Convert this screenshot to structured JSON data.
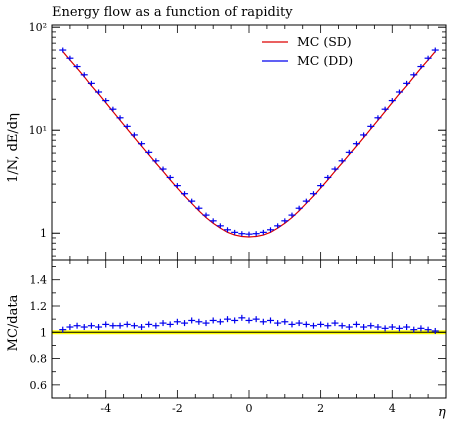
{
  "chart_data": {
    "type": "line",
    "title": "Energy flow as a function of rapidity",
    "xlabel": "η",
    "ylabel": "1/N, dE/dη",
    "ratio_ylabel": "MC/data",
    "xlim": [
      -5.5,
      5.5
    ],
    "ylim": [
      0.55,
      105
    ],
    "yscale": "log",
    "ratio_ylim": [
      0.5,
      1.55
    ],
    "x_ticks": [
      -4,
      -2,
      0,
      2,
      4
    ],
    "x_tick_labels": [
      "-4",
      "-2",
      "0",
      "2",
      "4"
    ],
    "y_ticks": [
      1,
      10,
      100
    ],
    "y_tick_labels": [
      "1",
      "10¹",
      "10²"
    ],
    "ratio_ticks": [
      0.6,
      0.8,
      1,
      1.2,
      1.4
    ],
    "ratio_tick_labels": [
      "0.6",
      "0.8",
      "1",
      "1.2",
      "1.4"
    ],
    "legend_position": "top-right",
    "colors": {
      "sd": "#dd0000",
      "dd": "#0000ee",
      "band": "#ffff00",
      "band_edge": "#c8c800"
    },
    "x": [
      -5.2,
      -5.0,
      -4.8,
      -4.6,
      -4.4,
      -4.2,
      -4.0,
      -3.8,
      -3.6,
      -3.4,
      -3.2,
      -3.0,
      -2.8,
      -2.6,
      -2.4,
      -2.2,
      -2.0,
      -1.8,
      -1.6,
      -1.4,
      -1.2,
      -1.0,
      -0.8,
      -0.6,
      -0.4,
      -0.2,
      0.0,
      0.2,
      0.4,
      0.6,
      0.8,
      1.0,
      1.2,
      1.4,
      1.6,
      1.8,
      2.0,
      2.2,
      2.4,
      2.6,
      2.8,
      3.0,
      3.2,
      3.4,
      3.6,
      3.8,
      4.0,
      4.2,
      4.4,
      4.6,
      4.8,
      5.0,
      5.2
    ],
    "series": [
      {
        "name": "MC (SD)",
        "style": "line",
        "values": [
          58,
          48,
          40,
          33,
          27,
          22.5,
          18.5,
          15.2,
          12.5,
          10.3,
          8.5,
          7.0,
          5.8,
          4.8,
          4.0,
          3.3,
          2.75,
          2.3,
          1.95,
          1.65,
          1.42,
          1.25,
          1.12,
          1.02,
          0.96,
          0.93,
          0.92,
          0.93,
          0.96,
          1.02,
          1.12,
          1.25,
          1.42,
          1.65,
          1.95,
          2.3,
          2.75,
          3.3,
          4.0,
          4.8,
          5.8,
          7.0,
          8.5,
          10.3,
          12.5,
          15.2,
          18.5,
          22.5,
          27,
          33,
          40,
          48,
          58
        ]
      },
      {
        "name": "MC (DD)",
        "style": "points",
        "values": [
          60,
          50,
          41.5,
          34.5,
          28.5,
          23.5,
          19.4,
          16.0,
          13.2,
          10.9,
          9.0,
          7.4,
          6.1,
          5.05,
          4.2,
          3.48,
          2.9,
          2.42,
          2.05,
          1.75,
          1.5,
          1.32,
          1.18,
          1.08,
          1.02,
          0.99,
          0.98,
          0.99,
          1.02,
          1.08,
          1.18,
          1.32,
          1.5,
          1.75,
          2.05,
          2.42,
          2.9,
          3.48,
          4.2,
          5.05,
          6.1,
          7.4,
          9.0,
          10.9,
          13.2,
          16.0,
          19.4,
          23.5,
          28.5,
          34.5,
          41.5,
          50,
          60
        ]
      }
    ],
    "ratio": [
      1.02,
      1.04,
      1.05,
      1.04,
      1.05,
      1.04,
      1.06,
      1.05,
      1.05,
      1.06,
      1.05,
      1.04,
      1.06,
      1.05,
      1.07,
      1.06,
      1.08,
      1.07,
      1.09,
      1.08,
      1.07,
      1.09,
      1.08,
      1.1,
      1.09,
      1.11,
      1.09,
      1.1,
      1.08,
      1.09,
      1.07,
      1.08,
      1.06,
      1.07,
      1.06,
      1.05,
      1.06,
      1.05,
      1.07,
      1.05,
      1.04,
      1.06,
      1.04,
      1.05,
      1.04,
      1.03,
      1.04,
      1.03,
      1.04,
      1.02,
      1.03,
      1.02,
      1.01
    ]
  }
}
